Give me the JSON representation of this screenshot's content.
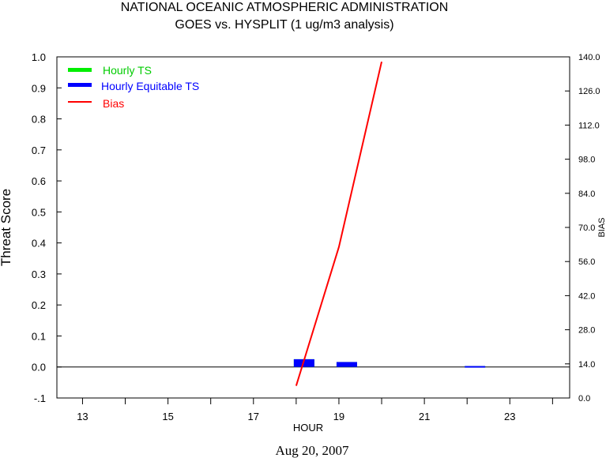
{
  "chart_data": {
    "type": "bar",
    "title": "NATIONAL OCEANIC ATMOSPHERIC ADMINISTRATION",
    "subtitle": "GOES vs. HYSPLIT  (1 ug/m3 analysis)",
    "xlabel": "HOUR",
    "ylabel": "Threat Score",
    "y2label": "BIAS",
    "date_label": "Aug 20, 2007",
    "xlim": [
      12.4,
      24.4
    ],
    "ylim": [
      -0.1,
      1.0
    ],
    "y2lim": [
      0.0,
      140.0
    ],
    "x_ticks": [
      13,
      14,
      15,
      16,
      17,
      18,
      19,
      20,
      21,
      22,
      23,
      24
    ],
    "x_tick_labels": [
      "13",
      "15",
      "17",
      "19",
      "21",
      "23"
    ],
    "x_tick_label_values": [
      13,
      15,
      17,
      19,
      21,
      23
    ],
    "y_ticks": [
      "-.1",
      "0.0",
      "0.1",
      "0.2",
      "0.3",
      "0.4",
      "0.5",
      "0.6",
      "0.7",
      "0.8",
      "0.9",
      "1.0"
    ],
    "y_tick_values": [
      -0.1,
      0.0,
      0.1,
      0.2,
      0.3,
      0.4,
      0.5,
      0.6,
      0.7,
      0.8,
      0.9,
      1.0
    ],
    "y2_ticks": [
      "0.0",
      "14.0",
      "28.0",
      "42.0",
      "56.0",
      "70.0",
      "84.0",
      "98.0",
      "112.0",
      "126.0",
      "140.0"
    ],
    "y2_tick_values": [
      0,
      14,
      28,
      42,
      56,
      70,
      84,
      98,
      112,
      126,
      140
    ],
    "legend": [
      {
        "label": "Hourly TS",
        "color": "#00ee00"
      },
      {
        "label": "Hourly Equitable TS",
        "color": "#0000ff"
      },
      {
        "label": "Bias",
        "color": "#ff0000"
      }
    ],
    "series": [
      {
        "name": "Hourly TS",
        "kind": "bar",
        "color": "#00ee00",
        "points": [
          {
            "x": 18.0,
            "y": 0.025
          },
          {
            "x": 19.0,
            "y": 0.016
          },
          {
            "x": 22.0,
            "y": 0.003
          }
        ]
      },
      {
        "name": "Hourly Equitable TS",
        "kind": "bar",
        "color": "#0000ff",
        "points": [
          {
            "x": 18.0,
            "y": 0.025
          },
          {
            "x": 19.0,
            "y": 0.016
          },
          {
            "x": 22.0,
            "y": 0.003
          }
        ]
      },
      {
        "name": "Bias",
        "kind": "line",
        "axis": "right",
        "color": "#ff0000",
        "points": [
          {
            "x": 18.0,
            "y": 5.0
          },
          {
            "x": 19.0,
            "y": 62.0
          },
          {
            "x": 20.0,
            "y": 138.0
          }
        ]
      }
    ],
    "zero_line": 0.0
  }
}
